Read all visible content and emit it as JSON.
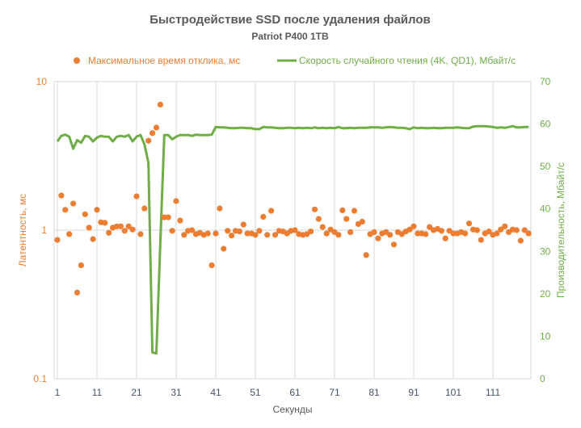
{
  "chart_data": {
    "type": "line+scatter",
    "title": "Быстродействие SSD после удаления файлов",
    "subtitle": "Patriot P400 1TB",
    "xlabel": "Секунды",
    "ylabel_left": "Латентность, мс",
    "ylabel_right": "Производительность, Мбайт/с",
    "x_ticks": [
      "1",
      "11",
      "21",
      "31",
      "41",
      "51",
      "61",
      "71",
      "81",
      "91",
      "101",
      "111"
    ],
    "y_left_ticks": [
      "0.1",
      "1",
      "10"
    ],
    "y_left_range": [
      0.1,
      10
    ],
    "y_left_scale": "log",
    "y_right_ticks": [
      "0",
      "10",
      "20",
      "30",
      "40",
      "50",
      "60",
      "70"
    ],
    "y_right_range": [
      0,
      70
    ],
    "x_range": [
      1,
      120
    ],
    "legend_position": "top",
    "colors": {
      "latency": "#ED7D31",
      "speed": "#70AD47",
      "grid": "#D9D9D9",
      "xtick": "#44546A",
      "text": "#595959"
    },
    "series": [
      {
        "name": "Максимальное время отклика, мс",
        "axis": "left",
        "kind": "scatter",
        "values": [
          0.86,
          1.71,
          1.37,
          0.94,
          1.51,
          0.38,
          0.58,
          1.28,
          1.04,
          0.87,
          1.37,
          1.13,
          1.12,
          0.96,
          1.04,
          1.06,
          1.06,
          0.99,
          1.06,
          1.01,
          1.69,
          0.94,
          1.4,
          4.0,
          4.5,
          4.9,
          7.0,
          1.22,
          1.22,
          0.99,
          1.57,
          1.16,
          0.93,
          0.99,
          1.0,
          0.94,
          0.96,
          0.93,
          0.95,
          0.58,
          0.95,
          1.4,
          0.75,
          0.99,
          0.92,
          0.99,
          0.98,
          1.09,
          0.95,
          0.95,
          0.93,
          0.99,
          1.23,
          0.93,
          1.35,
          0.93,
          0.99,
          0.98,
          0.95,
          0.99,
          1.0,
          0.94,
          0.93,
          0.94,
          0.98,
          1.38,
          1.19,
          1.05,
          0.95,
          1.01,
          0.97,
          0.93,
          1.36,
          1.19,
          0.97,
          1.35,
          1.1,
          1.14,
          0.68,
          0.94,
          0.97,
          0.88,
          0.95,
          0.97,
          0.93,
          0.8,
          0.97,
          0.94,
          0.98,
          1.01,
          1.06,
          0.95,
          0.95,
          0.94,
          1.05,
          1.0,
          1.02,
          0.99,
          0.88,
          0.99,
          0.95,
          0.95,
          0.97,
          0.95,
          1.11,
          1.01,
          1.0,
          0.86,
          0.95,
          0.98,
          0.93,
          0.95,
          1.01,
          1.06,
          0.97,
          1.01,
          1.0,
          0.85,
          1.0,
          0.95
        ]
      },
      {
        "name": "Скорость случайного чтения (4K, QD1), Мбайт/с",
        "axis": "right",
        "kind": "line",
        "values": [
          55.9,
          57.2,
          57.5,
          57.0,
          54.2,
          56.2,
          55.6,
          57.2,
          57.0,
          55.9,
          56.8,
          57.2,
          57.0,
          57.0,
          55.9,
          57.0,
          57.2,
          57.0,
          57.4,
          55.9,
          57.0,
          57.4,
          55.2,
          50.8,
          6.2,
          6.0,
          32.0,
          57.4,
          57.4,
          56.4,
          57.0,
          57.4,
          57.4,
          57.4,
          57.2,
          57.5,
          57.4,
          57.4,
          57.4,
          57.5,
          59.3,
          59.2,
          59.2,
          59.1,
          59.0,
          59.0,
          59.1,
          59.1,
          59.0,
          59.0,
          58.8,
          58.8,
          59.3,
          59.2,
          59.2,
          59.1,
          59.0,
          59.0,
          59.1,
          59.1,
          59.0,
          59.1,
          59.0,
          59.1,
          59.0,
          59.2,
          59.0,
          59.1,
          59.0,
          59.1,
          59.0,
          59.3,
          59.0,
          59.0,
          59.1,
          59.0,
          59.1,
          59.1,
          59.1,
          59.2,
          59.2,
          59.2,
          59.1,
          59.2,
          59.3,
          59.2,
          59.1,
          59.1,
          59.0,
          58.8,
          59.2,
          59.0,
          59.1,
          59.0,
          59.0,
          59.1,
          59.0,
          59.0,
          59.1,
          59.1,
          59.1,
          59.2,
          59.1,
          59.0,
          59.0,
          59.4,
          59.5,
          59.5,
          59.5,
          59.4,
          59.3,
          59.1,
          59.2,
          59.1,
          59.3,
          59.5,
          59.2,
          59.2,
          59.3,
          59.3
        ]
      }
    ]
  }
}
